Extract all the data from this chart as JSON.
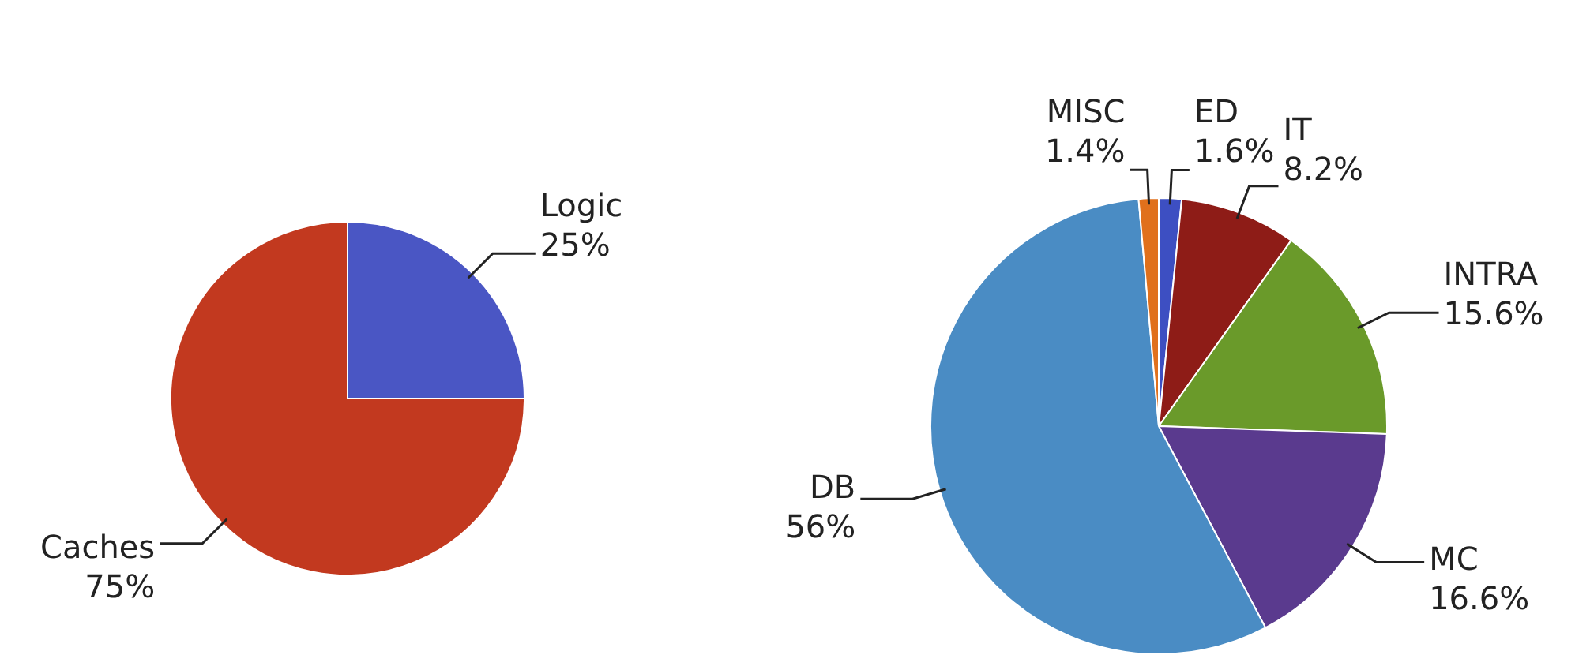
{
  "chart_data": [
    {
      "type": "pie",
      "categories": [
        "Logic",
        "Caches"
      ],
      "values": [
        25,
        75
      ],
      "colors": [
        "#4a56c4",
        "#c2391f"
      ],
      "value_labels": [
        "25%",
        "75%"
      ],
      "legend": false
    },
    {
      "type": "pie",
      "categories": [
        "ED",
        "IT",
        "INTRA",
        "MC",
        "DB",
        "MISC"
      ],
      "values": [
        1.6,
        8.2,
        15.6,
        16.6,
        56,
        1.4
      ],
      "colors": [
        "#3d4fc2",
        "#8e1c17",
        "#6a9a2a",
        "#5a3a8e",
        "#4a8cc4",
        "#e0701c"
      ],
      "value_labels": [
        "1.6%",
        "8.2%",
        "15.6%",
        "16.6%",
        "56%",
        "1.4%"
      ],
      "legend": false
    }
  ]
}
